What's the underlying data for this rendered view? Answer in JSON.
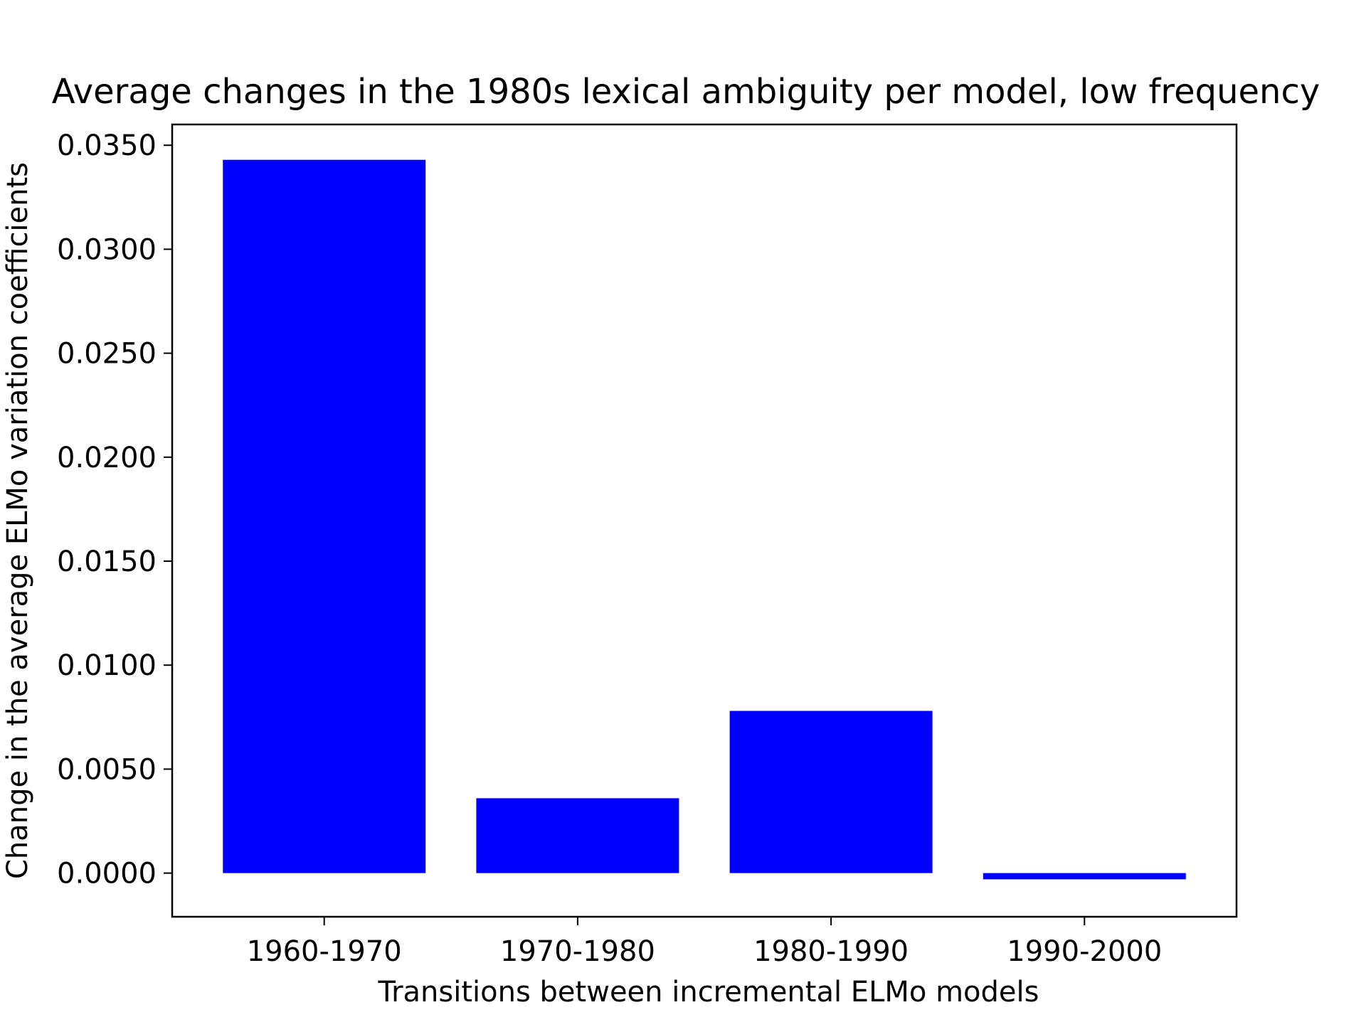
{
  "chart_data": {
    "type": "bar",
    "title": "Average changes in the 1980s lexical ambiguity per model, low frequency",
    "xlabel": "Transitions between incremental ELMo models",
    "ylabel": "Change in the average ELMo variation coefficients",
    "categories": [
      "1960-1970",
      "1970-1980",
      "1980-1990",
      "1990-2000"
    ],
    "values": [
      0.0343,
      0.0036,
      0.0078,
      -0.0003
    ],
    "ylim": [
      -0.0021,
      0.036
    ],
    "yticks": [
      0.0,
      0.005,
      0.01,
      0.015,
      0.02,
      0.025,
      0.03,
      0.035
    ],
    "ytick_labels": [
      "0.0000",
      "0.0050",
      "0.0100",
      "0.0150",
      "0.0200",
      "0.0250",
      "0.0300",
      "0.0350"
    ],
    "bar_color": "#0000ff",
    "grid": false,
    "legend": "none"
  }
}
